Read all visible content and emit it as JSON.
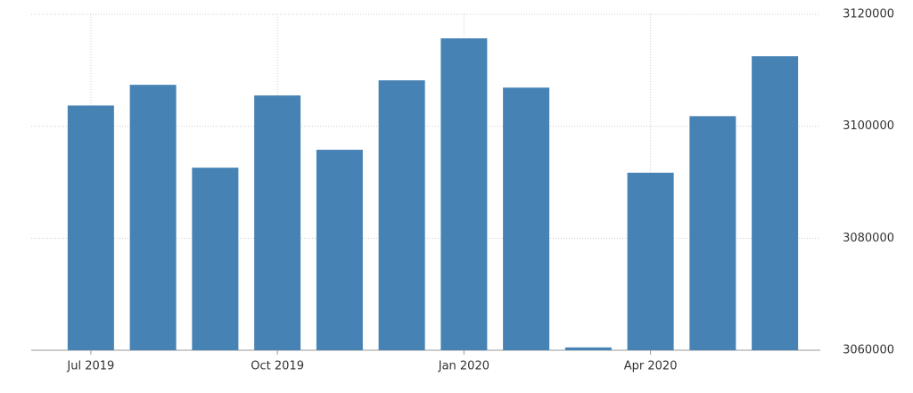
{
  "chart_data": {
    "type": "bar",
    "categories": [
      "Jul 2019",
      null,
      null,
      "Oct 2019",
      null,
      null,
      "Jan 2020",
      null,
      null,
      "Apr 2020",
      null,
      null
    ],
    "values": [
      3103700,
      3107400,
      3092600,
      3105500,
      3095800,
      3108200,
      3115700,
      3106900,
      3060500,
      3091700,
      3101800,
      3112500
    ],
    "color": "#4682b4",
    "ylim": [
      3060000,
      3120000
    ],
    "yticks": [
      3060000,
      3080000,
      3100000,
      3120000
    ],
    "grid": true
  }
}
